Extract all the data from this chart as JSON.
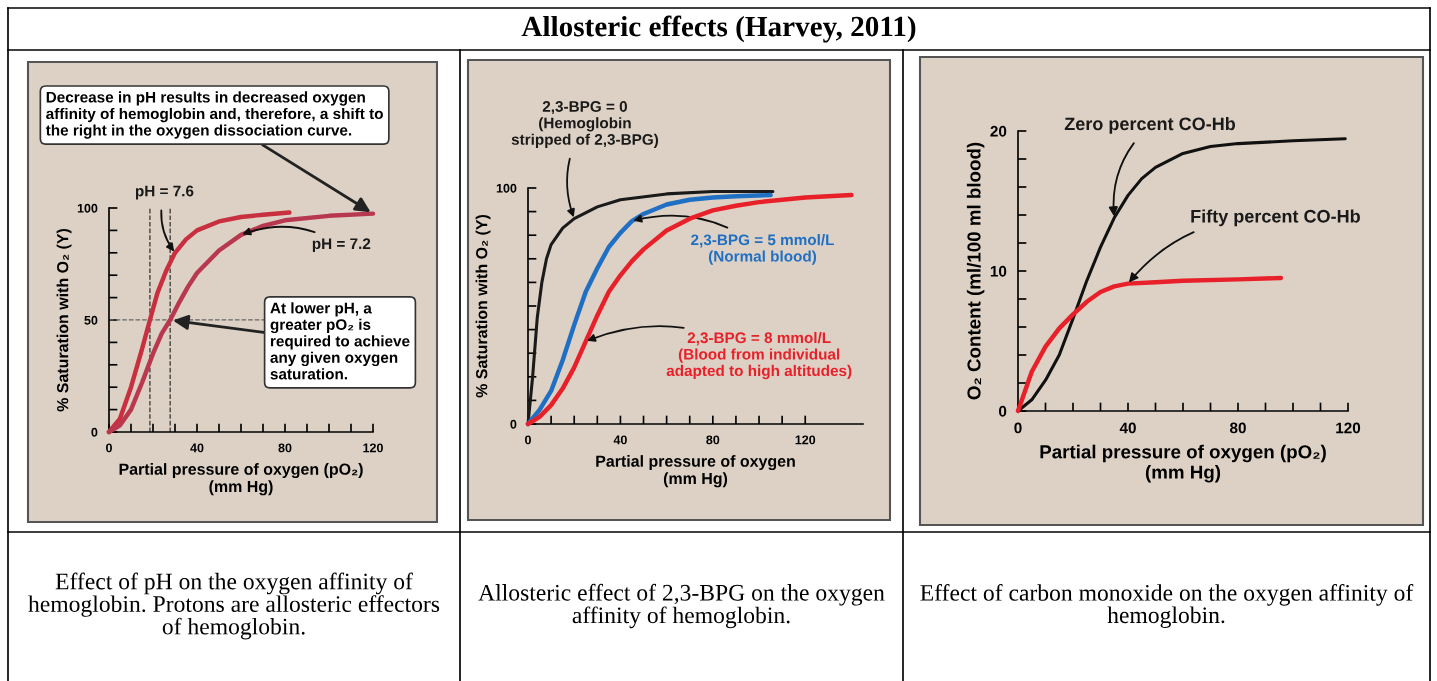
{
  "chart_data": [
    {
      "type": "other",
      "title": "Allosteric effects (Harvey, 2011)"
    },
    {
      "type": "line",
      "xlabel": "Partial pressure of oxygen (pO₂)\n(mm Hg)",
      "ylabel": "% Saturation with O₂ (Y)",
      "xlim": [
        0,
        120
      ],
      "ylim": [
        0,
        100
      ],
      "xticks": [
        0,
        {
          "value": 10,
          "label": null
        },
        {
          "value": 20,
          "label": null
        },
        {
          "value": 30,
          "label": null
        },
        40,
        {
          "value": 50,
          "label": null
        },
        {
          "value": 60,
          "label": null
        },
        {
          "value": 70,
          "label": null
        },
        80,
        {
          "value": 90,
          "label": null
        },
        {
          "value": 100,
          "label": null
        },
        {
          "value": 110,
          "label": null
        },
        120
      ],
      "yticks": [
        0,
        {
          "value": 10,
          "label": null
        },
        {
          "value": 20,
          "label": null
        },
        {
          "value": 30,
          "label": null
        },
        {
          "value": 40,
          "label": null
        },
        50,
        {
          "value": 60,
          "label": null
        },
        {
          "value": 70,
          "label": null
        },
        {
          "value": 80,
          "label": null
        },
        {
          "value": 90,
          "label": null
        },
        100
      ],
      "series": [
        {
          "name": "pH = 7.6",
          "color": "#c8303f",
          "x": [
            0,
            5,
            10,
            15,
            18.6,
            22,
            26,
            30,
            35,
            40,
            50,
            60,
            70,
            82
          ],
          "values": [
            0,
            6,
            20,
            37,
            50,
            62,
            72,
            80,
            86,
            90,
            94,
            96,
            97,
            98
          ]
        },
        {
          "name": "pH = 7.2",
          "color": "#b8384f",
          "x": [
            0,
            5,
            10,
            15,
            20,
            24,
            27.8,
            32,
            36,
            40,
            50,
            60,
            70,
            80,
            100,
            120
          ],
          "values": [
            0,
            3,
            10,
            22,
            35,
            44,
            50,
            58,
            65,
            71,
            81,
            88,
            92,
            94.5,
            96.5,
            97.5
          ]
        }
      ],
      "ref_lines": [
        {
          "axis": "y",
          "value": 50,
          "color": "#666666",
          "line_style": "dashed"
        },
        {
          "axis": "x",
          "value": 18.6,
          "color": "#333333",
          "line_style": "dashed"
        },
        {
          "axis": "x",
          "value": 27.8,
          "color": "#333333",
          "line_style": "dashed"
        }
      ],
      "annotations": [
        {
          "text": "Decrease in pH results in decreased oxygen affinity of hemoglobin and, therefore, a shift to the right in the oxygen dissociation curve.",
          "x": 120,
          "y": 97.5
        },
        {
          "text": "At lower pH, a greater pO₂ is required to achieve any given oxygen saturation.",
          "x": 27.8,
          "y": 50
        },
        "Effect of pH on the oxygen affinity of hemoglobin. Protons are allosteric effectors of hemoglobin."
      ],
      "grid": false,
      "legend": false
    },
    {
      "type": "line",
      "xlabel": "Partial pressure of oxygen\n(mm Hg)",
      "ylabel": "% Saturation with O₂ (Y)",
      "xlim": [
        0,
        145
      ],
      "ylim": [
        0,
        100
      ],
      "xticks": [
        0,
        {
          "value": 10,
          "label": null
        },
        {
          "value": 20,
          "label": null
        },
        {
          "value": 30,
          "label": null
        },
        40,
        {
          "value": 50,
          "label": null
        },
        {
          "value": 60,
          "label": null
        },
        {
          "value": 70,
          "label": null
        },
        80,
        {
          "value": 90,
          "label": null
        },
        {
          "value": 100,
          "label": null
        },
        {
          "value": 110,
          "label": null
        },
        120
      ],
      "yticks": [
        0,
        {
          "value": 10,
          "label": null
        },
        {
          "value": 20,
          "label": null
        },
        {
          "value": 30,
          "label": null
        },
        {
          "value": 40,
          "label": null
        },
        {
          "value": 50,
          "label": null
        },
        {
          "value": 60,
          "label": null
        },
        {
          "value": 70,
          "label": null
        },
        {
          "value": 80,
          "label": null
        },
        {
          "value": 90,
          "label": null
        },
        100
      ],
      "series": [
        {
          "name": "2,3-BPG = 0\n(Hemoglobin\nstripped of 2,3-BPG)",
          "color": "#1a1a1a",
          "x": [
            0,
            2,
            4,
            6,
            8,
            10,
            15,
            20,
            30,
            40,
            60,
            80,
            106
          ],
          "values": [
            0,
            20,
            45,
            60,
            70,
            76,
            83,
            87,
            92,
            95,
            97.5,
            98.5,
            98.5
          ]
        },
        {
          "name": "2,3-BPG = 5 mmol/L\n(Normal blood)",
          "color": "#1f6fc4",
          "x": [
            0,
            5,
            10,
            15,
            20,
            25,
            30,
            35,
            40,
            45,
            50,
            60,
            70,
            80,
            90,
            105
          ],
          "values": [
            0,
            6,
            14,
            27,
            42,
            56,
            66,
            75,
            81,
            86,
            89,
            93,
            95,
            96,
            96.5,
            97
          ]
        },
        {
          "name": "2,3-BPG = 8 mmol/L\n(Blood from individual\nadapted to high altitudes)",
          "color": "#e8202a",
          "x": [
            0,
            5,
            10,
            15,
            20,
            25,
            30,
            35,
            40,
            45,
            50,
            60,
            70,
            80,
            90,
            100,
            120,
            140
          ],
          "values": [
            0,
            3,
            8,
            15,
            24,
            35,
            46,
            56,
            63,
            69,
            74,
            82,
            87,
            90.5,
            92.5,
            94,
            96,
            97
          ]
        }
      ],
      "annotations": [
        "Allosteric effect of 2,3-BPG on the oxygen affinity of hemoglobin."
      ],
      "grid": false,
      "legend": false
    },
    {
      "type": "line",
      "xlabel": "Partial pressure of oxygen (pO₂)\n(mm Hg)",
      "ylabel": "O₂ Content (ml/100 ml blood)",
      "xlim": [
        0,
        120
      ],
      "ylim": [
        0,
        20
      ],
      "xticks": [
        0,
        {
          "value": 10,
          "label": null
        },
        {
          "value": 20,
          "label": null
        },
        {
          "value": 30,
          "label": null
        },
        40,
        {
          "value": 50,
          "label": null
        },
        {
          "value": 60,
          "label": null
        },
        {
          "value": 70,
          "label": null
        },
        80,
        {
          "value": 90,
          "label": null
        },
        {
          "value": 100,
          "label": null
        },
        {
          "value": 110,
          "label": null
        },
        120
      ],
      "yticks": [
        0,
        {
          "value": 2,
          "label": null
        },
        {
          "value": 4,
          "label": null
        },
        {
          "value": 6,
          "label": null
        },
        {
          "value": 8,
          "label": null
        },
        10,
        {
          "value": 12,
          "label": null
        },
        {
          "value": 14,
          "label": null
        },
        {
          "value": 16,
          "label": null
        },
        {
          "value": 18,
          "label": null
        },
        20
      ],
      "series": [
        {
          "name": "Zero percent CO-Hb",
          "color": "#111111",
          "x": [
            0,
            5,
            10,
            15,
            20,
            25,
            30,
            35,
            40,
            45,
            50,
            60,
            70,
            80,
            100,
            119
          ],
          "values": [
            0,
            0.8,
            2.2,
            4,
            6.6,
            9.3,
            11.7,
            13.8,
            15.4,
            16.6,
            17.4,
            18.4,
            18.9,
            19.1,
            19.3,
            19.45
          ]
        },
        {
          "name": "Fifty percent CO-Hb",
          "color": "#e8202a",
          "x": [
            0,
            5,
            10,
            15,
            20,
            25,
            30,
            35,
            40,
            50,
            60,
            80,
            95.6
          ],
          "values": [
            0,
            2.8,
            4.6,
            5.9,
            6.9,
            7.8,
            8.5,
            8.9,
            9.1,
            9.2,
            9.3,
            9.4,
            9.5
          ]
        }
      ],
      "annotations": [
        "Effect of carbon monoxide on the oxygen affinity of hemoglobin."
      ],
      "grid": false,
      "legend": false
    }
  ]
}
